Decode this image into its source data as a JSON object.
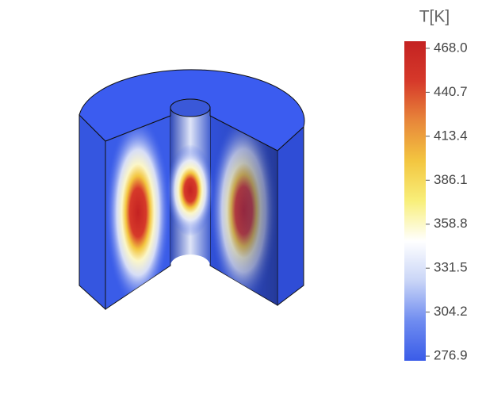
{
  "chart_data": {
    "type": "colorbar",
    "colorbar": {
      "title": "T[K]",
      "lim": [
        274,
        472.4
      ],
      "ticks": [
        {
          "value": 468,
          "label": "468.0"
        },
        440.7,
        413.4,
        386.1,
        358.8,
        331.5,
        304.2,
        276.9
      ],
      "colormap": [
        "#3a5ce8",
        "#6f8cf0",
        "#c9d5f7",
        "#ffffff",
        "#f8ef7a",
        "#f3c640",
        "#e8873a",
        "#d6392a",
        "#c42222"
      ]
    }
  }
}
